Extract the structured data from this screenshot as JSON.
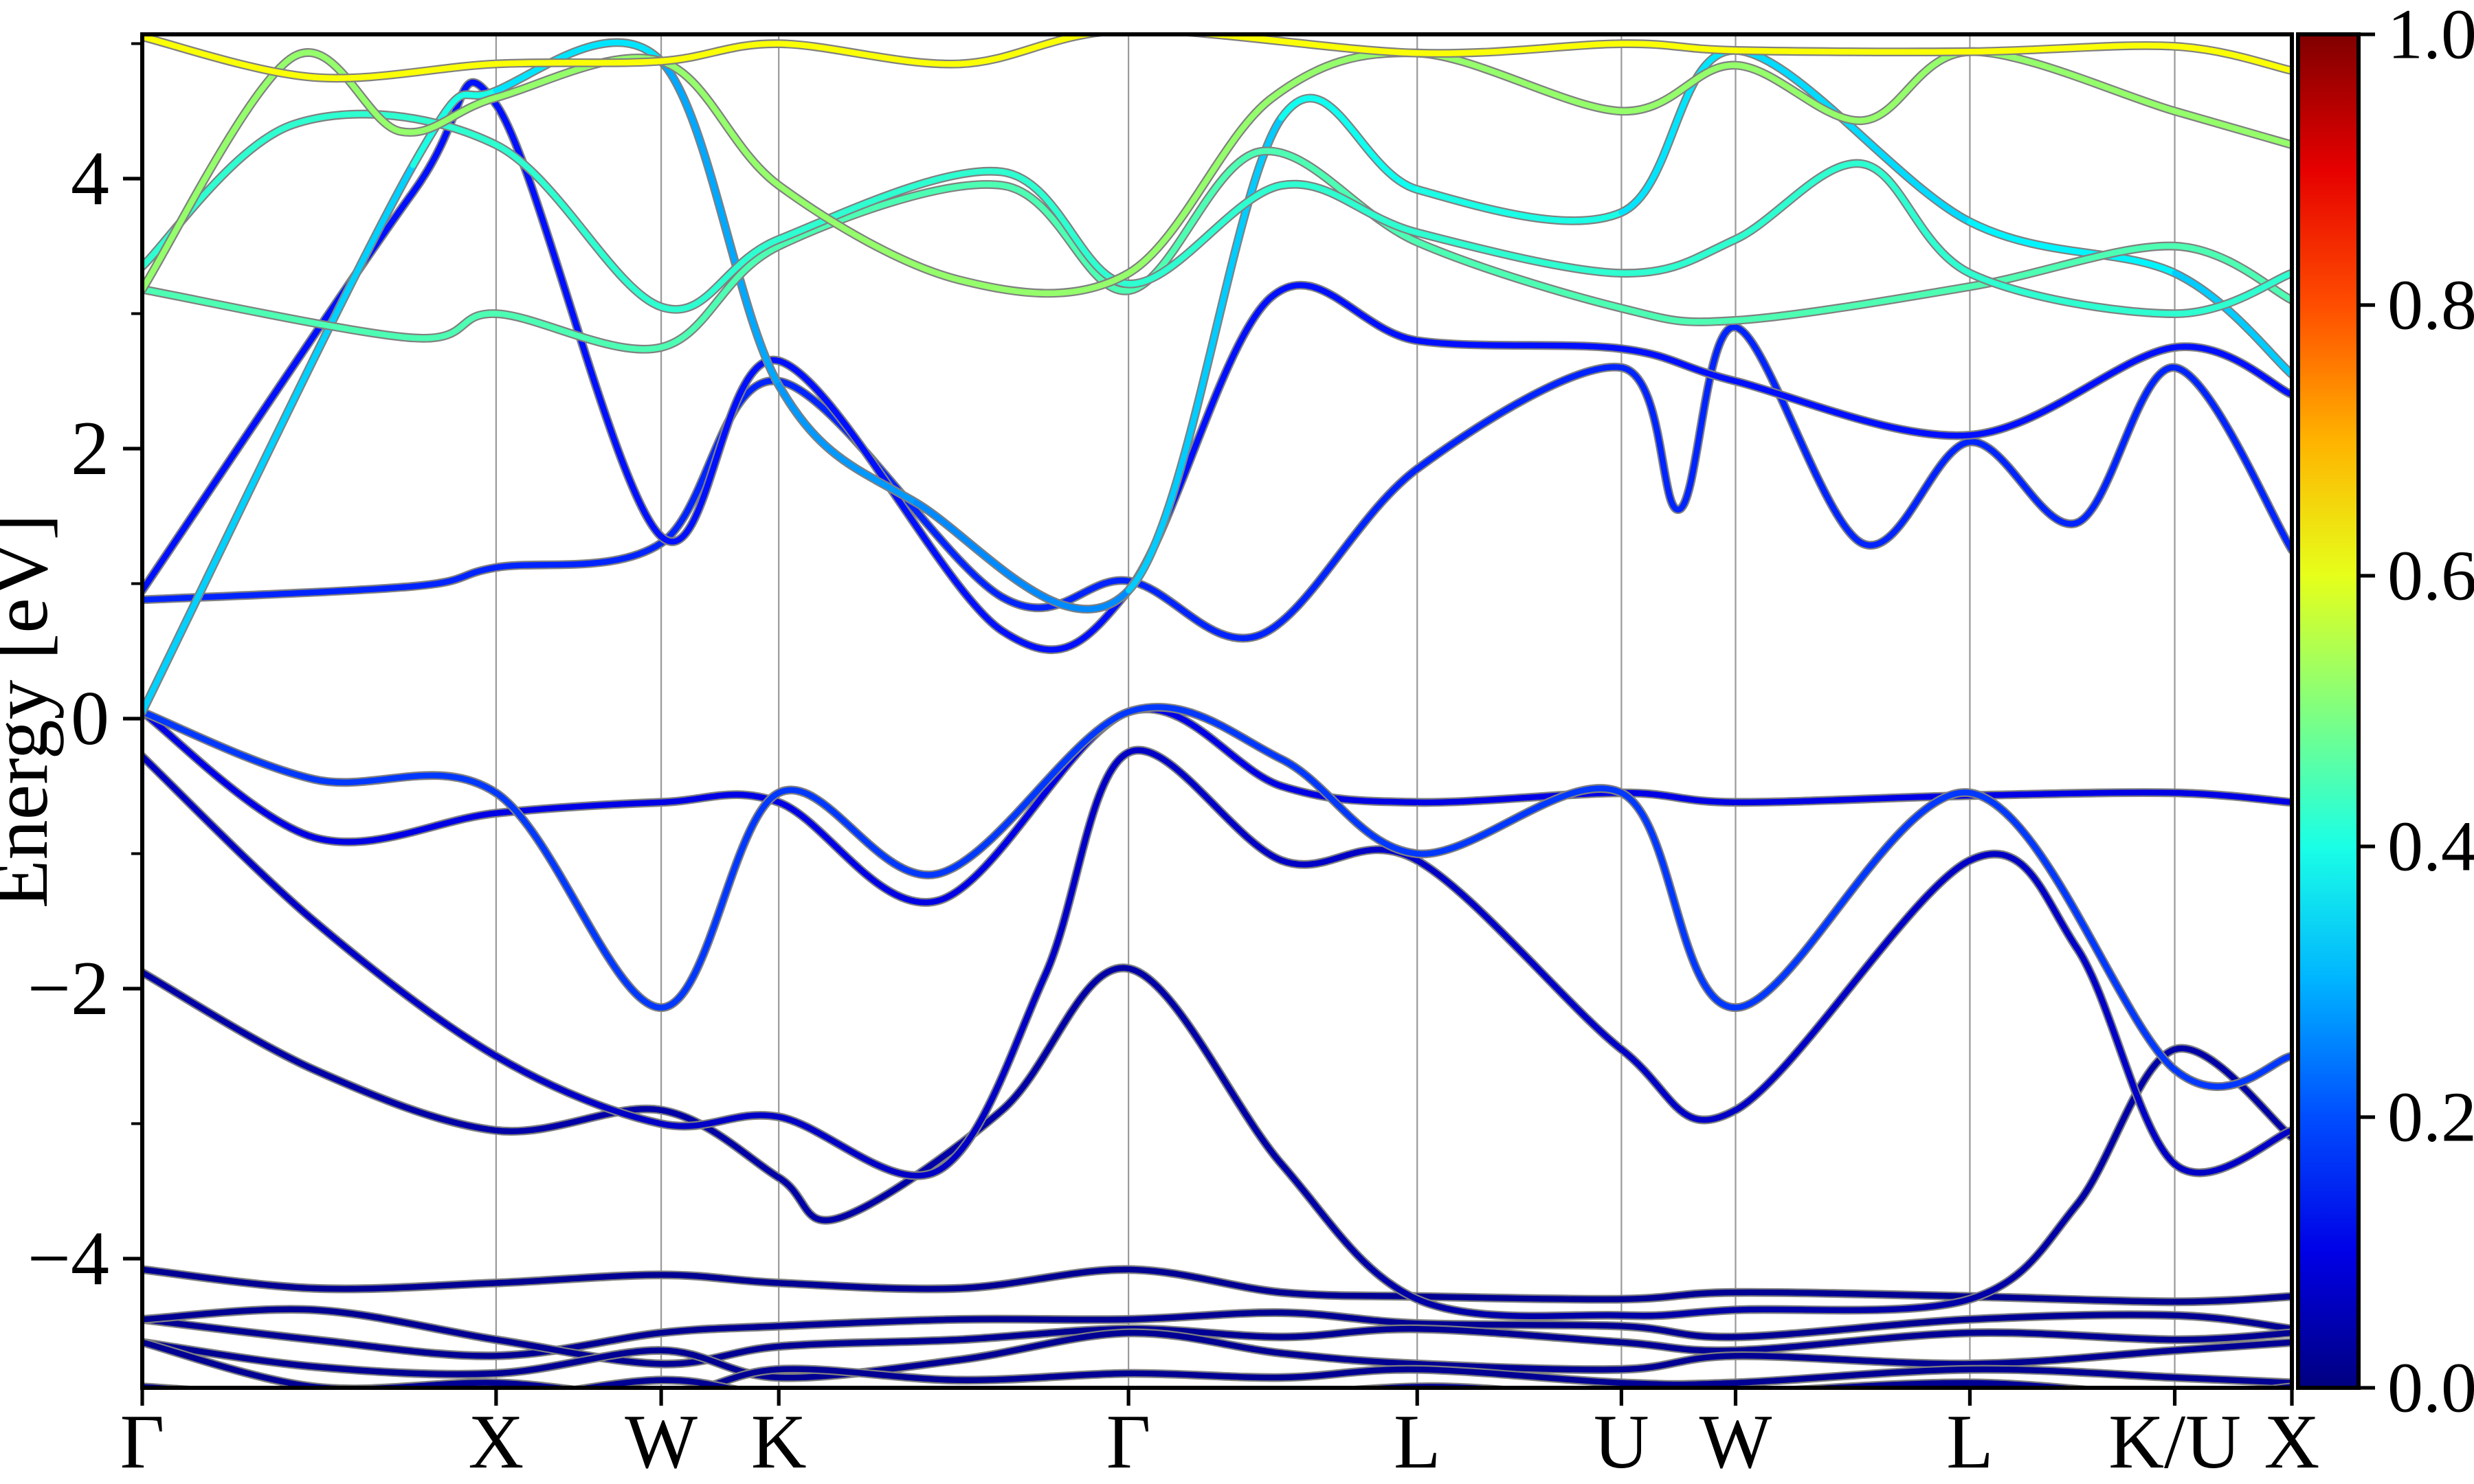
{
  "figure": {
    "kind": "electronic band structure plot",
    "background": "#ffffff"
  },
  "axes": {
    "ylabel": "Energy [eV]",
    "ylim": [
      -4.957,
      5.069
    ],
    "y_major_labels": [
      "4",
      "2",
      "0",
      "−2",
      "−4"
    ],
    "y_major_values": [
      4,
      2,
      0,
      -2,
      -4
    ],
    "y_minor_values": [
      5,
      3,
      1,
      -1,
      -3
    ],
    "x_tick_labels": [
      "Γ",
      "X",
      "W",
      "K",
      "Γ",
      "L",
      "U",
      "W",
      "L",
      "K/U",
      "X"
    ],
    "x_tick_positions": [
      0,
      0.1646,
      0.2414,
      0.2961,
      0.4588,
      0.5931,
      0.6881,
      0.7412,
      0.8502,
      0.9455,
      1.0
    ],
    "gridline_color": "#999999",
    "spine_color": "#000000"
  },
  "colorbar": {
    "tick_labels": [
      "1.0",
      "0.8",
      "0.6",
      "0.4",
      "0.2",
      "0.0"
    ],
    "tick_values": [
      1.0,
      0.8,
      0.6,
      0.4,
      0.2,
      0.0
    ],
    "colormap": "jet",
    "gradient_stops": [
      {
        "v": 0.0,
        "color": "#000080"
      },
      {
        "v": 0.1,
        "color": "#0000e6"
      },
      {
        "v": 0.2,
        "color": "#004dff"
      },
      {
        "v": 0.3,
        "color": "#00b3ff"
      },
      {
        "v": 0.4,
        "color": "#1affe6"
      },
      {
        "v": 0.5,
        "color": "#80ff80"
      },
      {
        "v": 0.6,
        "color": "#e6ff1a"
      },
      {
        "v": 0.7,
        "color": "#ffb300"
      },
      {
        "v": 0.8,
        "color": "#ff4d00"
      },
      {
        "v": 0.9,
        "color": "#e60000"
      },
      {
        "v": 1.0,
        "color": "#800000"
      }
    ]
  },
  "chart_data": {
    "type": "line",
    "subtype": "band-structure-fatbands",
    "title": "",
    "xlabel": "",
    "ylabel": "Energy [eV]",
    "ylim": [
      -4.957,
      5.069
    ],
    "k_path": [
      "Γ",
      "X",
      "W",
      "K",
      "Γ",
      "L",
      "U",
      "W",
      "L",
      "K/U",
      "X"
    ],
    "k_positions": [
      0,
      0.1646,
      0.2414,
      0.2961,
      0.4588,
      0.5931,
      0.6881,
      0.7412,
      0.8502,
      0.9455,
      1.0
    ],
    "grid": "vertical-at-high-symmetry-points",
    "color_scale": {
      "min": 0.0,
      "max": 1.0,
      "colormap": "jet",
      "legend_position": "right"
    },
    "line_style": {
      "edge_color": "#808080",
      "edge_width": 6.4,
      "core_width": 4.2
    },
    "bands": [
      {
        "name": "core-band-1",
        "color_value": 0.02,
        "points": [
          [
            0,
            -4.08
          ],
          [
            0.08,
            -4.22
          ],
          [
            0.1646,
            -4.18
          ],
          [
            0.2414,
            -4.12
          ],
          [
            0.2961,
            -4.18
          ],
          [
            0.38,
            -4.22
          ],
          [
            0.4588,
            -4.08
          ],
          [
            0.53,
            -4.25
          ],
          [
            0.5931,
            -4.28
          ],
          [
            0.6881,
            -4.3
          ],
          [
            0.7412,
            -4.25
          ],
          [
            0.8502,
            -4.28
          ],
          [
            0.9455,
            -4.32
          ],
          [
            1,
            -4.28
          ]
        ]
      },
      {
        "name": "core-band-2",
        "color_value": 0.02,
        "points": [
          [
            0,
            -4.45
          ],
          [
            0.08,
            -4.6
          ],
          [
            0.1646,
            -4.72
          ],
          [
            0.2414,
            -4.55
          ],
          [
            0.2961,
            -4.5
          ],
          [
            0.38,
            -4.45
          ],
          [
            0.4588,
            -4.45
          ],
          [
            0.53,
            -4.4
          ],
          [
            0.5931,
            -4.48
          ],
          [
            0.6881,
            -4.5
          ],
          [
            0.7412,
            -4.58
          ],
          [
            0.8502,
            -4.45
          ],
          [
            0.9455,
            -4.42
          ],
          [
            1,
            -4.52
          ]
        ]
      },
      {
        "name": "core-band-3",
        "color_value": 0.02,
        "points": [
          [
            0,
            -4.45
          ],
          [
            0.08,
            -4.38
          ],
          [
            0.1646,
            -4.6
          ],
          [
            0.2414,
            -4.78
          ],
          [
            0.2961,
            -4.65
          ],
          [
            0.38,
            -4.6
          ],
          [
            0.4588,
            -4.52
          ],
          [
            0.53,
            -4.58
          ],
          [
            0.5931,
            -4.52
          ],
          [
            0.6881,
            -4.62
          ],
          [
            0.7412,
            -4.68
          ],
          [
            0.8502,
            -4.55
          ],
          [
            0.9455,
            -4.6
          ],
          [
            1,
            -4.55
          ]
        ]
      },
      {
        "name": "core-band-4",
        "color_value": 0.02,
        "points": [
          [
            0,
            -4.62
          ],
          [
            0.08,
            -4.8
          ],
          [
            0.1646,
            -4.85
          ],
          [
            0.2414,
            -4.68
          ],
          [
            0.2961,
            -4.88
          ],
          [
            0.38,
            -4.75
          ],
          [
            0.4588,
            -4.55
          ],
          [
            0.53,
            -4.7
          ],
          [
            0.5931,
            -4.78
          ],
          [
            0.6881,
            -4.82
          ],
          [
            0.7412,
            -4.72
          ],
          [
            0.8502,
            -4.78
          ],
          [
            0.9455,
            -4.68
          ],
          [
            1,
            -4.62
          ]
        ]
      },
      {
        "name": "core-band-5",
        "color_value": 0.02,
        "points": [
          [
            0,
            -4.62
          ],
          [
            0.08,
            -4.95
          ],
          [
            0.1646,
            -4.92
          ],
          [
            0.2414,
            -5.02
          ],
          [
            0.2961,
            -4.82
          ],
          [
            0.38,
            -4.9
          ],
          [
            0.4588,
            -4.85
          ],
          [
            0.53,
            -4.88
          ],
          [
            0.5931,
            -4.82
          ],
          [
            0.6881,
            -4.92
          ],
          [
            0.7412,
            -4.92
          ],
          [
            0.8502,
            -4.82
          ],
          [
            0.9455,
            -4.88
          ],
          [
            1,
            -4.92
          ]
        ]
      },
      {
        "name": "core-band-6",
        "color_value": 0.02,
        "points": [
          [
            0,
            -4.95
          ],
          [
            0.1,
            -5.05
          ],
          [
            0.1646,
            -5.05
          ],
          [
            0.2414,
            -4.9
          ],
          [
            0.2961,
            -5.02
          ],
          [
            0.38,
            -5.1
          ],
          [
            0.4588,
            -5.12
          ],
          [
            0.5931,
            -4.95
          ],
          [
            0.6881,
            -5.05
          ],
          [
            0.7412,
            -5.0
          ],
          [
            0.8502,
            -4.92
          ],
          [
            0.9455,
            -5.02
          ],
          [
            1,
            -4.95
          ]
        ]
      },
      {
        "name": "valence-band-deep",
        "color_value": 0.04,
        "points": [
          [
            0,
            -1.88
          ],
          [
            0.08,
            -2.6
          ],
          [
            0.1646,
            -3.05
          ],
          [
            0.2414,
            -2.9
          ],
          [
            0.2961,
            -3.4
          ],
          [
            0.324,
            -3.7
          ],
          [
            0.4,
            -2.9
          ],
          [
            0.4588,
            -1.85
          ],
          [
            0.53,
            -3.3
          ],
          [
            0.5931,
            -4.3
          ],
          [
            0.6881,
            -4.42
          ],
          [
            0.7412,
            -4.38
          ],
          [
            0.8502,
            -4.3
          ],
          [
            0.9,
            -3.6
          ],
          [
            0.9455,
            -2.45
          ],
          [
            1,
            -3.1
          ]
        ]
      },
      {
        "name": "valence-band-splitoff",
        "color_value": 0.07,
        "points": [
          [
            0,
            -0.28
          ],
          [
            0.08,
            -1.5
          ],
          [
            0.1646,
            -2.5
          ],
          [
            0.2414,
            -3.0
          ],
          [
            0.2961,
            -2.95
          ],
          [
            0.37,
            -3.35
          ],
          [
            0.42,
            -1.9
          ],
          [
            0.4588,
            -0.25
          ],
          [
            0.53,
            -1.05
          ],
          [
            0.5931,
            -1.05
          ],
          [
            0.6881,
            -2.45
          ],
          [
            0.7412,
            -2.9
          ],
          [
            0.8502,
            -1.05
          ],
          [
            0.9,
            -1.7
          ],
          [
            0.9455,
            -3.3
          ],
          [
            1,
            -3.05
          ]
        ]
      },
      {
        "name": "valence-band-heavy",
        "color_value": 0.1,
        "points": [
          [
            0,
            0.05
          ],
          [
            0.08,
            -0.88
          ],
          [
            0.1646,
            -0.7
          ],
          [
            0.2414,
            -0.62
          ],
          [
            0.2961,
            -0.62
          ],
          [
            0.37,
            -1.35
          ],
          [
            0.4588,
            0.05
          ],
          [
            0.53,
            -0.5
          ],
          [
            0.5931,
            -0.62
          ],
          [
            0.6881,
            -0.55
          ],
          [
            0.7412,
            -0.62
          ],
          [
            0.8502,
            -0.57
          ],
          [
            0.9455,
            -0.55
          ],
          [
            1,
            -0.62
          ]
        ]
      },
      {
        "name": "valence-band-light",
        "color_value": 0.18,
        "points": [
          [
            0,
            0.05
          ],
          [
            0.08,
            -0.45
          ],
          [
            0.1646,
            -0.55
          ],
          [
            0.2414,
            -2.14
          ],
          [
            0.2961,
            -0.55
          ],
          [
            0.37,
            -1.15
          ],
          [
            0.4588,
            0.05
          ],
          [
            0.53,
            -0.3
          ],
          [
            0.5931,
            -1.0
          ],
          [
            0.6881,
            -0.55
          ],
          [
            0.7412,
            -2.14
          ],
          [
            0.8502,
            -0.55
          ],
          [
            0.9455,
            -2.6
          ],
          [
            1,
            -2.5
          ]
        ]
      },
      {
        "name": "conduction-band-low",
        "color_value": 0.16,
        "points": [
          [
            0,
            0.88
          ],
          [
            0.126,
            0.98
          ],
          [
            0.1646,
            1.12
          ],
          [
            0.2414,
            1.3
          ],
          [
            0.2961,
            2.5
          ],
          [
            0.4,
            0.9
          ],
          [
            0.4588,
            1.02
          ],
          [
            0.52,
            0.62
          ],
          [
            0.5931,
            1.85
          ],
          [
            0.6881,
            2.6
          ],
          [
            0.715,
            1.55
          ],
          [
            0.7412,
            2.9
          ],
          [
            0.8,
            1.3
          ],
          [
            0.8502,
            2.05
          ],
          [
            0.9,
            1.45
          ],
          [
            0.9455,
            2.6
          ],
          [
            1,
            1.25
          ]
        ]
      },
      {
        "name": "conduction-band-mid",
        "color_value": 0.14,
        "points": [
          [
            0,
            0.95
          ],
          [
            0.126,
            3.9
          ],
          [
            0.1646,
            4.55
          ],
          [
            0.2414,
            1.35
          ],
          [
            0.2961,
            2.65
          ],
          [
            0.4,
            0.65
          ],
          [
            0.4588,
            0.95
          ],
          [
            0.525,
            3.12
          ],
          [
            0.5931,
            2.8
          ],
          [
            0.6881,
            2.74
          ],
          [
            0.7412,
            2.5
          ],
          [
            0.8502,
            2.1
          ],
          [
            0.9455,
            2.75
          ],
          [
            1,
            2.4
          ]
        ]
      },
      {
        "name": "conduction-band-steep",
        "color_value": [
          0.28,
          0.38,
          0.42,
          0.28,
          0.3,
          0.25,
          0.27,
          0.38,
          0.4,
          0.4,
          0.3,
          0.38,
          0.35,
          0.3
        ],
        "points": [
          [
            0,
            0.05
          ],
          [
            0.126,
            4.1
          ],
          [
            0.1646,
            4.65
          ],
          [
            0.2414,
            4.87
          ],
          [
            0.2961,
            2.47
          ],
          [
            0.36,
            1.6
          ],
          [
            0.4588,
            0.95
          ],
          [
            0.53,
            4.45
          ],
          [
            0.5931,
            3.92
          ],
          [
            0.6881,
            3.75
          ],
          [
            0.7412,
            4.95
          ],
          [
            0.8502,
            3.68
          ],
          [
            0.9455,
            3.3
          ],
          [
            1,
            2.55
          ]
        ]
      },
      {
        "name": "upper-band-green-flat",
        "color_value": 0.45,
        "points": [
          [
            0,
            3.18
          ],
          [
            0.126,
            2.82
          ],
          [
            0.1646,
            3.0
          ],
          [
            0.2414,
            2.75
          ],
          [
            0.2961,
            3.5
          ],
          [
            0.4,
            3.95
          ],
          [
            0.4588,
            3.17
          ],
          [
            0.52,
            4.2
          ],
          [
            0.5931,
            3.53
          ],
          [
            0.6881,
            3.04
          ],
          [
            0.7412,
            2.95
          ],
          [
            0.8502,
            3.2
          ],
          [
            0.9455,
            3.5
          ],
          [
            1,
            3.1
          ]
        ]
      },
      {
        "name": "upper-band-cyan",
        "color_value": 0.42,
        "points": [
          [
            0,
            3.35
          ],
          [
            0.07,
            4.4
          ],
          [
            0.1646,
            4.25
          ],
          [
            0.2414,
            3.05
          ],
          [
            0.2961,
            3.55
          ],
          [
            0.4,
            4.05
          ],
          [
            0.4588,
            3.22
          ],
          [
            0.53,
            3.95
          ],
          [
            0.5931,
            3.6
          ],
          [
            0.6881,
            3.3
          ],
          [
            0.7412,
            3.55
          ],
          [
            0.8,
            4.11
          ],
          [
            0.8502,
            3.3
          ],
          [
            0.9455,
            3.0
          ],
          [
            1,
            3.3
          ]
        ]
      },
      {
        "name": "upper-band-green",
        "color_value": 0.52,
        "points": [
          [
            0,
            3.18
          ],
          [
            0.07,
            4.9
          ],
          [
            0.12,
            4.35
          ],
          [
            0.1646,
            4.6
          ],
          [
            0.2414,
            4.87
          ],
          [
            0.2961,
            3.95
          ],
          [
            0.38,
            3.25
          ],
          [
            0.4588,
            3.3
          ],
          [
            0.525,
            4.59
          ],
          [
            0.5931,
            4.93
          ],
          [
            0.6881,
            4.5
          ],
          [
            0.7412,
            4.84
          ],
          [
            0.8,
            4.43
          ],
          [
            0.8502,
            4.94
          ],
          [
            0.9455,
            4.5
          ],
          [
            1,
            4.25
          ]
        ]
      },
      {
        "name": "upper-band-yellow",
        "color_value": 0.62,
        "points": [
          [
            0,
            5.05
          ],
          [
            0.08,
            4.75
          ],
          [
            0.1646,
            4.85
          ],
          [
            0.2414,
            4.87
          ],
          [
            0.2961,
            5.0
          ],
          [
            0.38,
            4.85
          ],
          [
            0.4588,
            5.1
          ],
          [
            0.5931,
            4.93
          ],
          [
            0.6881,
            5.0
          ],
          [
            0.7412,
            4.95
          ],
          [
            0.8502,
            4.94
          ],
          [
            0.9455,
            4.98
          ],
          [
            1,
            4.8
          ]
        ]
      }
    ]
  }
}
